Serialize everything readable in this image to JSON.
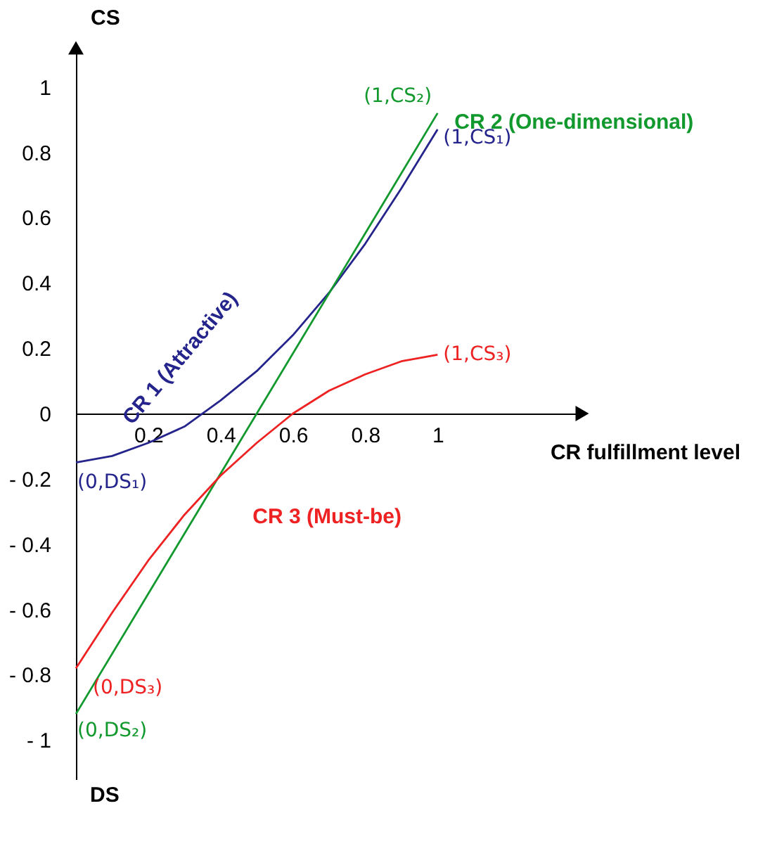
{
  "chart_data": {
    "type": "line",
    "xlabel": "CR fulfillment level",
    "ylabel": "CS",
    "x": [
      0,
      0.1,
      0.2,
      0.3,
      0.4,
      0.5,
      0.6,
      0.7,
      0.8,
      0.9,
      1
    ],
    "series": [
      {
        "name": "CR 1 (Attractive)",
        "color": "#24248c",
        "values": [
          -0.15,
          -0.13,
          -0.09,
          -0.04,
          0.04,
          0.13,
          0.24,
          0.37,
          0.52,
          0.69,
          0.87
        ]
      },
      {
        "name": "CR 2 (One-dimensional)",
        "color": "#12992e",
        "x": [
          0,
          1
        ],
        "values": [
          -0.92,
          0.92
        ]
      },
      {
        "name": "CR 3 (Must-be)",
        "color": "#ee2222",
        "values": [
          -0.78,
          -0.61,
          -0.45,
          -0.31,
          -0.19,
          -0.09,
          0.0,
          0.07,
          0.12,
          0.16,
          0.18
        ]
      }
    ],
    "xlim": [
      0,
      1.4
    ],
    "ylim": [
      -1.12,
      1.12
    ],
    "xticks": [
      0.2,
      0.4,
      0.6,
      0.8,
      1
    ],
    "yticks": [
      {
        "value": -1,
        "label": "- 1"
      },
      {
        "value": -0.8,
        "label": "- 0.8"
      },
      {
        "value": -0.6,
        "label": "- 0.6"
      },
      {
        "value": -0.4,
        "label": "- 0.4"
      },
      {
        "value": -0.2,
        "label": "- 0.2"
      },
      0,
      0.2,
      0.4,
      0.6,
      0.8,
      1
    ],
    "annotations": [
      "(1,CS₂)",
      "(1,CS₁)",
      "(1,CS₃)",
      "(0,DS₁)",
      "(0,DS₃)",
      "(0,DS₂)",
      "DS"
    ],
    "grid": false,
    "legend": false,
    "marker": "none",
    "line_style": "solid"
  }
}
